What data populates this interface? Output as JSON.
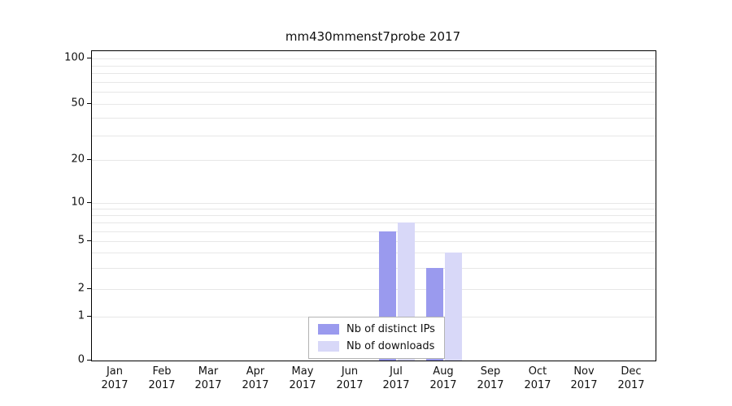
{
  "chart_data": {
    "type": "bar",
    "title": "mm430mmenst7probe 2017",
    "months": [
      "Jan",
      "Feb",
      "Mar",
      "Apr",
      "May",
      "Jun",
      "Jul",
      "Aug",
      "Sep",
      "Oct",
      "Nov",
      "Dec"
    ],
    "year": "2017",
    "series": [
      {
        "name": "Nb of distinct IPs",
        "color": "#9a9aee",
        "values": [
          0,
          0,
          0,
          0,
          0,
          0,
          6,
          3,
          0,
          0,
          0,
          0
        ]
      },
      {
        "name": "Nb of downloads",
        "color": "#d8d8f8",
        "values": [
          0,
          0,
          0,
          0,
          0,
          0,
          7,
          4,
          0,
          0,
          0,
          0
        ]
      }
    ],
    "yticks": [
      0,
      1,
      2,
      5,
      10,
      20,
      50,
      100
    ],
    "ylim": [
      0,
      110
    ],
    "xlabel": "",
    "ylabel": "",
    "grid": "horizontal-minor",
    "legend_position": "inside-bottom-center",
    "scale": "log-like"
  }
}
